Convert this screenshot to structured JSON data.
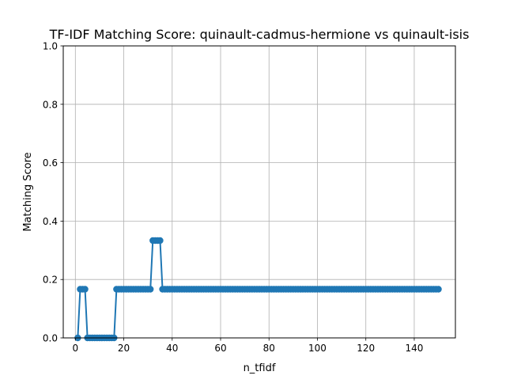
{
  "chart_data": {
    "type": "line",
    "title": "TF-IDF Matching Score: quinault-cadmus-hermione vs quinault-isis",
    "xlabel": "n_tfidf",
    "ylabel": "Matching Score",
    "xlim": [
      -5,
      157
    ],
    "ylim": [
      0,
      1
    ],
    "xticks": [
      0,
      20,
      40,
      60,
      80,
      100,
      120,
      140
    ],
    "yticks": [
      0.0,
      0.2,
      0.4,
      0.6,
      0.8,
      1.0
    ],
    "xtick_labels": [
      "0",
      "20",
      "40",
      "60",
      "80",
      "100",
      "120",
      "140"
    ],
    "ytick_labels": [
      "0.0",
      "0.2",
      "0.4",
      "0.6",
      "0.8",
      "1.0"
    ],
    "grid": true,
    "line_color": "#1f77b4",
    "marker": "circle",
    "series": [
      {
        "segments": [
          {
            "x_start": 1,
            "x_end": 1,
            "value": 0.0
          },
          {
            "x_start": 2,
            "x_end": 4,
            "value": 0.1667
          },
          {
            "x_start": 5,
            "x_end": 16,
            "value": 0.0
          },
          {
            "x_start": 17,
            "x_end": 31,
            "value": 0.1667
          },
          {
            "x_start": 32,
            "x_end": 35,
            "value": 0.3333
          },
          {
            "x_start": 36,
            "x_end": 150,
            "value": 0.1667
          }
        ]
      }
    ]
  }
}
